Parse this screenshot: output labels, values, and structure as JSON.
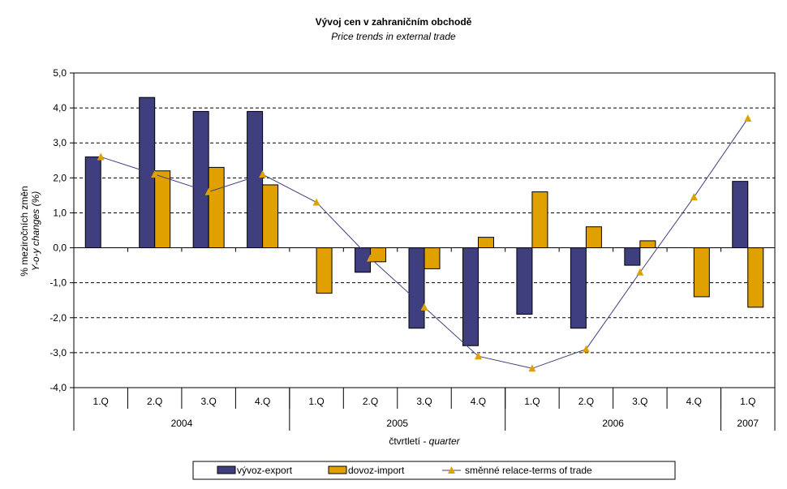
{
  "chart_data": {
    "type": "bar",
    "title": "Vývoj cen v zahraničním obchodě",
    "subtitle": "Price trends in external trade",
    "ylabel_line1": "% meziročních změn",
    "ylabel_line2": "Y-o-y changes (%)",
    "xlabel_cz": "čtvrtletí - ",
    "xlabel_en": "quarter",
    "ylim": [
      -4,
      5
    ],
    "yticks": [
      5,
      4,
      3,
      2,
      1,
      0,
      -1,
      -2,
      -3,
      -4
    ],
    "ytick_labels": [
      "5,0",
      "4,0",
      "3,0",
      "2,0",
      "1,0",
      "0,0",
      "-1,0",
      "-2,0",
      "-3,0",
      "-4,0"
    ],
    "grid": "horizontal-dashed",
    "categories": [
      "1.Q",
      "2.Q",
      "3.Q",
      "4.Q",
      "1.Q",
      "2.Q",
      "3.Q",
      "4.Q",
      "1.Q",
      "2.Q",
      "3.Q",
      "4.Q",
      "1.Q"
    ],
    "years": [
      {
        "label": "2004",
        "count": 4
      },
      {
        "label": "2005",
        "count": 4
      },
      {
        "label": "2006",
        "count": 4
      },
      {
        "label": "2007",
        "count": 1
      }
    ],
    "series": [
      {
        "name": "vývoz-export",
        "type": "bar",
        "color": "#3f3f7f",
        "values": [
          2.6,
          4.3,
          3.9,
          3.9,
          0,
          -0.7,
          -2.3,
          -2.8,
          -1.9,
          -2.3,
          -0.5,
          0,
          1.9
        ]
      },
      {
        "name": "dovoz-import",
        "type": "bar",
        "color": "#e0a000",
        "values": [
          0,
          2.2,
          2.3,
          1.8,
          -1.3,
          -0.4,
          -0.6,
          0.3,
          1.6,
          0.6,
          0.2,
          -1.4,
          -1.7
        ]
      },
      {
        "name": "směnné relace-terms of trade",
        "type": "line",
        "color": "#3f3f7f",
        "marker_color": "#e0a000",
        "marker": "triangle",
        "values": [
          2.6,
          2.1,
          1.6,
          2.1,
          1.3,
          -0.3,
          -1.7,
          -3.1,
          -3.45,
          -2.9,
          -0.7,
          1.45,
          3.7
        ]
      }
    ],
    "legend_position": "bottom"
  }
}
